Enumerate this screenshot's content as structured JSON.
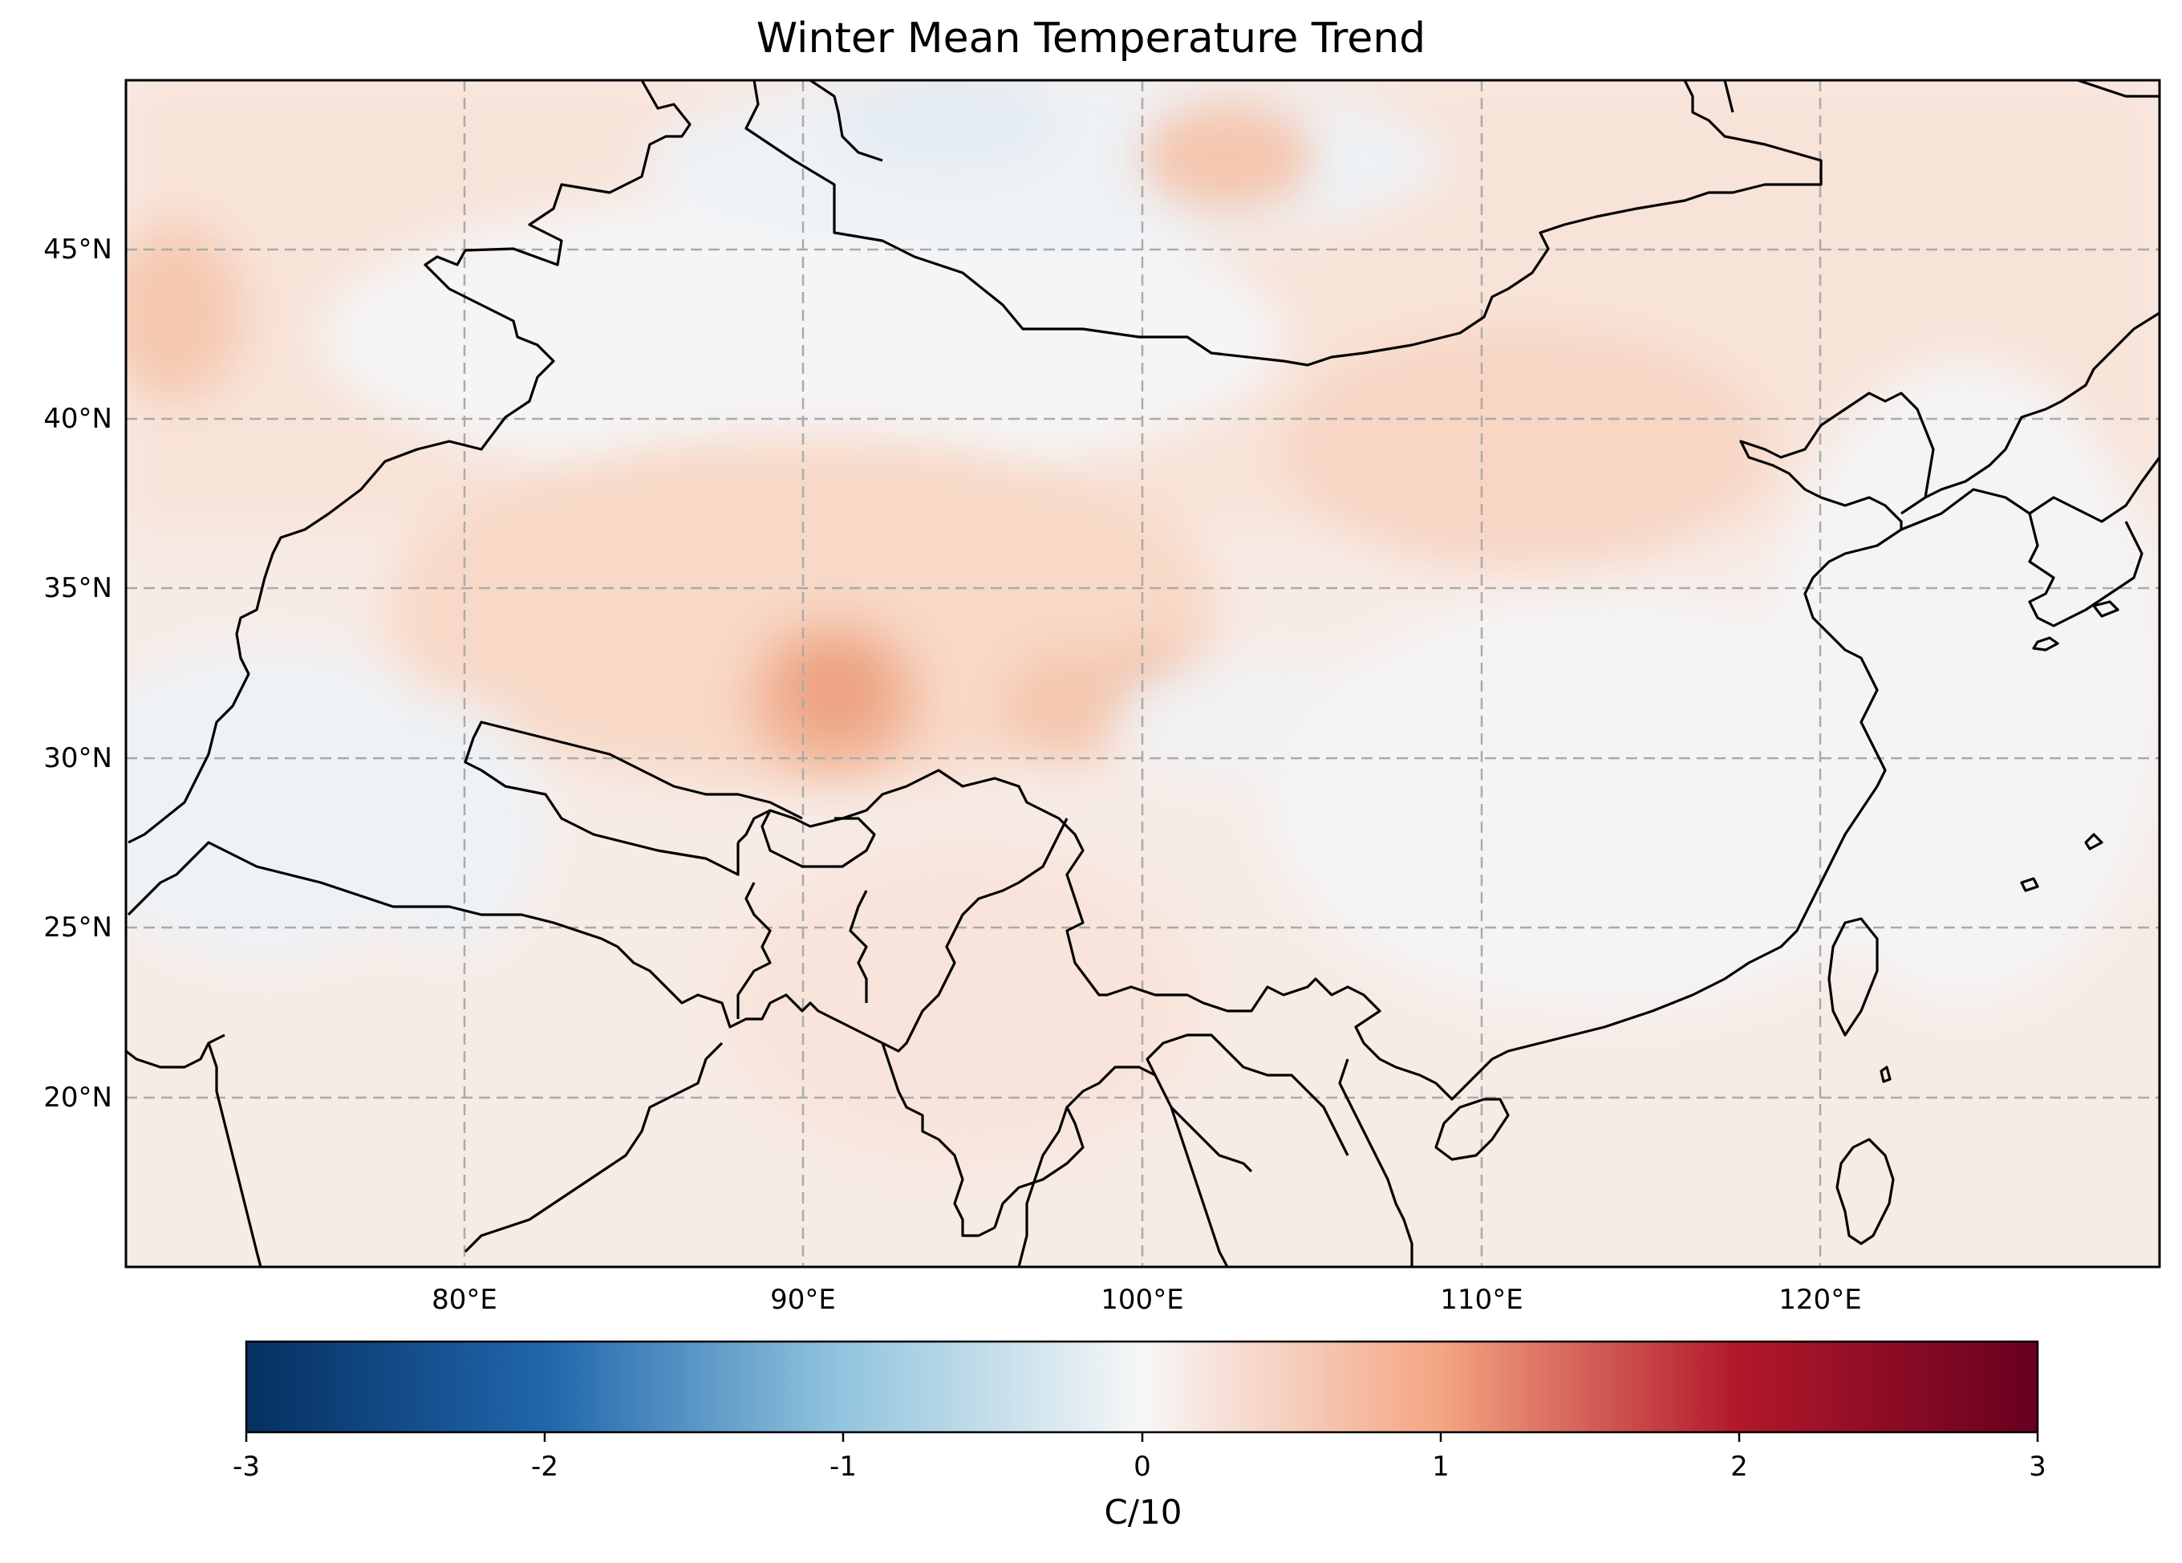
{
  "title": "Winter Mean Temperature Trend",
  "map": {
    "lat_labels": [
      "45°N",
      "40°N",
      "35°N",
      "30°N",
      "25°N",
      "20°N"
    ],
    "lon_labels": [
      "80°E",
      "90°E",
      "100°E",
      "110°E",
      "120°E"
    ],
    "lat_range": [
      15,
      50
    ],
    "lon_range": [
      70,
      130
    ],
    "gridlines": true
  },
  "colorbar": {
    "colormap": "RdBu_r",
    "ticks": [
      "-3",
      "-2",
      "-1",
      "0",
      "1",
      "2",
      "3"
    ],
    "range": [
      -3,
      3
    ],
    "unit_label": "C/10",
    "colors": {
      "low": "#053061",
      "mid_low": "#2166ac",
      "light_low": "#92c5de",
      "zero": "#f7f7f7",
      "light_high": "#f4a582",
      "mid_high": "#b2182b",
      "high": "#67001f"
    }
  }
}
